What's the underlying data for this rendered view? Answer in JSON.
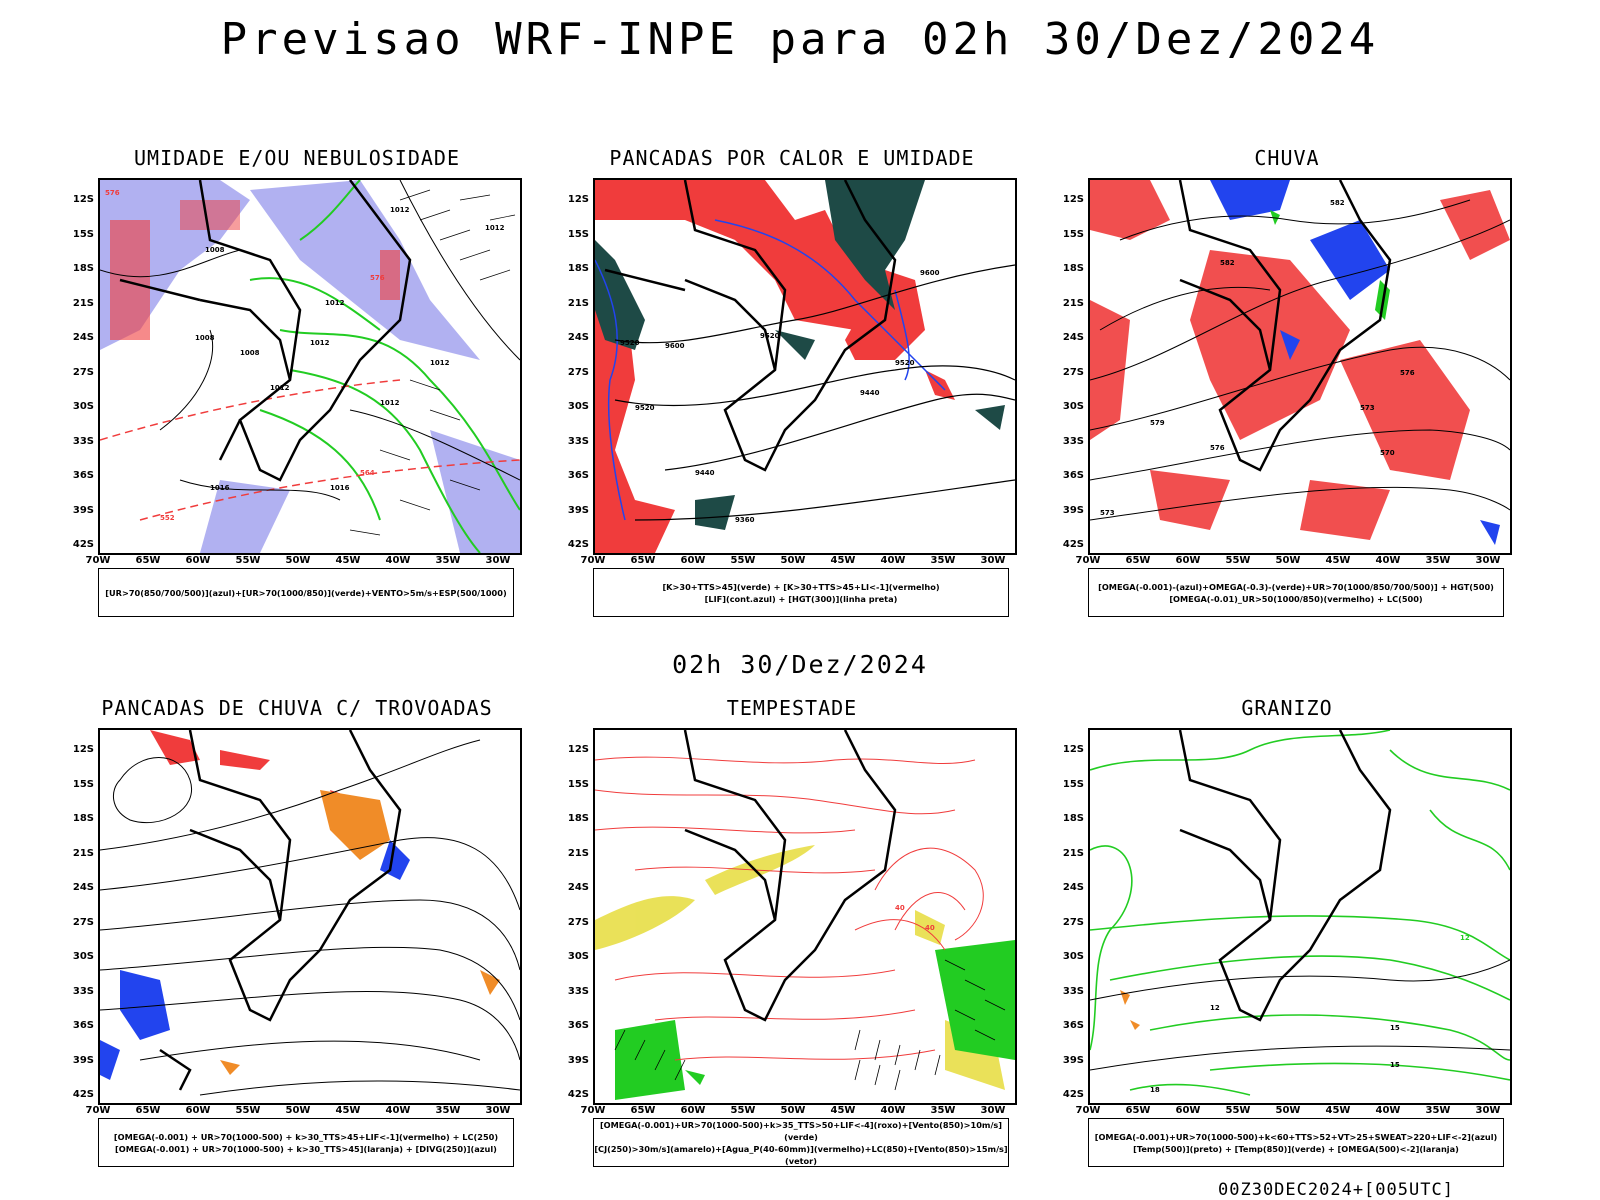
{
  "title": "Previsao WRF-INPE  para 02h 30/Dez/2024",
  "subtitle": "02h 30/Dez/2024",
  "footer": "00Z30DEC2024+[005UTC]",
  "lat_labels": [
    "12S",
    "15S",
    "18S",
    "21S",
    "24S",
    "27S",
    "30S",
    "33S",
    "36S",
    "39S",
    "42S"
  ],
  "lon_labels": [
    "70W",
    "65W",
    "60W",
    "55W",
    "50W",
    "45W",
    "40W",
    "35W",
    "30W"
  ],
  "colors": {
    "humid_blue": "#a9a9f0",
    "green": "#22cc22",
    "red": "#f03c3c",
    "darkteal": "#1e4a46",
    "orange": "#f08c28",
    "blue": "#2244ee",
    "yellow": "#e6dc3c"
  },
  "panels": [
    {
      "title": "UMIDADE E/OU NEBULOSIDADE",
      "legend": [
        "[UR>70(850/700/500)](azul)+[UR>70(1000/850)](verde)+VENTO>5m/s+ESP(500/1000)"
      ],
      "map_labels": [
        "1012",
        "1012",
        "1008",
        "1008",
        "1012",
        "1012",
        "1012",
        "1012",
        "1008",
        "1012",
        "1016",
        "1016",
        "576",
        "576",
        "564",
        "552"
      ]
    },
    {
      "title": "PANCADAS POR CALOR E UMIDADE",
      "legend": [
        "[K>30+TTS>45](verde)  +  [K>30+TTS>45+LI<-1](vermelho)",
        "[LIF](cont.azul)  +  [HGT(300)](linha preta)"
      ],
      "map_labels": [
        "9600",
        "9520",
        "9600",
        "9520",
        "9520",
        "9440",
        "9440",
        "9360",
        "9520"
      ]
    },
    {
      "title": "CHUVA",
      "legend": [
        "[OMEGA(-0.001)-(azul)+OMEGA(-0.3)-(verde)+UR>70(1000/850/700/500)]  +  HGT(500)",
        "[OMEGA(-0.01)_UR>50(1000/850)(vermelho)  +  LC(500)"
      ],
      "map_labels": [
        "582",
        "582",
        "576",
        "579",
        "573",
        "570",
        "576",
        "573"
      ]
    },
    {
      "title": "PANCADAS DE CHUVA C/ TROVOADAS",
      "legend": [
        "[OMEGA(-0.001)  +  UR>70(1000-500)  +  k>30_TTS>45+LIF<-1](vermelho)  +  LC(250)",
        "[OMEGA(-0.001)  +  UR>70(1000-500)  +  k>30_TTS>45](laranja)  +  [DIVG(250)](azul)"
      ],
      "map_labels": []
    },
    {
      "title": "TEMPESTADE",
      "legend": [
        "[OMEGA(-0.001)+UR>70(1000-500)+k>35_TTS>50+LIF<-4](roxo)+[Vento(850)>10m/s](verde)",
        "[CJ(250)>30m/s](amarelo)+[Agua_P(40-60mm)](vermelho)+LC(850)+[Vento(850)>15m/s](vetor)"
      ],
      "map_labels": [
        "40",
        "40"
      ]
    },
    {
      "title": "GRANIZO",
      "legend": [
        "[OMEGA(-0.001)+UR>70(1000-500)+k<60+TTS>52+VT>25+SWEAT>220+LIF<-2](azul)",
        "[Temp(500)](preto)  +  [Temp(850)](verde)  +  [OMEGA(500)<-2](laranja)"
      ],
      "map_labels": [
        "12",
        "12",
        "15",
        "15",
        "18"
      ]
    }
  ]
}
